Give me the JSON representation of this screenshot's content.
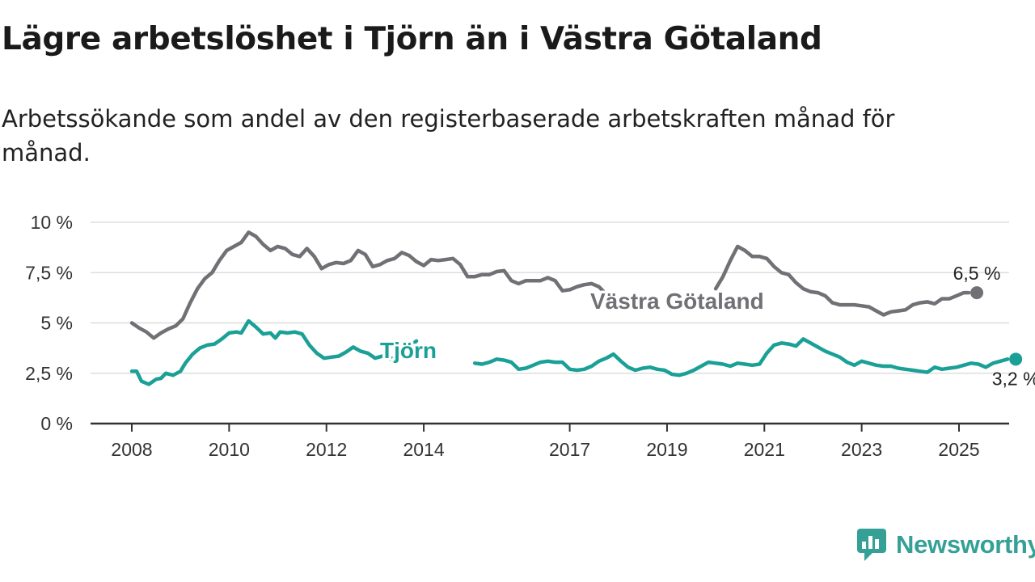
{
  "title": "Lägre arbetslöshet i Tjörn än i Västra Götaland",
  "subtitle": "Arbetssökande som andel av den registerbaserade arbetskraften månad för månad.",
  "brand": {
    "name": "Newsworthy",
    "icon": "newsworthy-logo-icon",
    "color": "#35a096"
  },
  "colors": {
    "grid": "#dddddd",
    "axis": "#333333",
    "text": "#333333"
  },
  "chart_data": {
    "type": "line",
    "title": "Lägre arbetslöshet i Tjörn än i Västra Götaland",
    "xlabel": "",
    "ylabel": "",
    "xlim": [
      2008,
      2026
    ],
    "ylim": [
      0,
      10
    ],
    "grid": true,
    "legend": "inline labels",
    "yticks": [
      {
        "value": 0,
        "label": "0 %"
      },
      {
        "value": 2.5,
        "label": "2,5 %"
      },
      {
        "value": 5,
        "label": "5 %"
      },
      {
        "value": 7.5,
        "label": "7,5 %"
      },
      {
        "value": 10,
        "label": "10 %"
      }
    ],
    "xticks": [
      "2008",
      "2010",
      "2012",
      "2014",
      "2017",
      "2019",
      "2021",
      "2023",
      "2025"
    ],
    "series": [
      {
        "name": "Västra Götaland",
        "color": "#707075",
        "end_label": "6,5 %",
        "segments": [
          [
            [
              2008.0,
              5.0
            ],
            [
              2008.15,
              4.75
            ],
            [
              2008.3,
              4.55
            ],
            [
              2008.45,
              4.25
            ],
            [
              2008.6,
              4.5
            ],
            [
              2008.75,
              4.7
            ],
            [
              2008.9,
              4.85
            ],
            [
              2009.05,
              5.2
            ],
            [
              2009.2,
              6.0
            ],
            [
              2009.35,
              6.7
            ],
            [
              2009.5,
              7.2
            ],
            [
              2009.65,
              7.5
            ],
            [
              2009.8,
              8.1
            ],
            [
              2009.95,
              8.6
            ],
            [
              2010.1,
              8.8
            ],
            [
              2010.25,
              9.0
            ],
            [
              2010.4,
              9.5
            ],
            [
              2010.55,
              9.3
            ],
            [
              2010.7,
              8.9
            ],
            [
              2010.85,
              8.6
            ],
            [
              2011.0,
              8.8
            ],
            [
              2011.15,
              8.7
            ],
            [
              2011.3,
              8.4
            ],
            [
              2011.45,
              8.3
            ],
            [
              2011.6,
              8.7
            ],
            [
              2011.75,
              8.3
            ],
            [
              2011.9,
              7.7
            ],
            [
              2012.05,
              7.9
            ],
            [
              2012.2,
              8.0
            ],
            [
              2012.35,
              7.95
            ],
            [
              2012.5,
              8.1
            ],
            [
              2012.65,
              8.6
            ],
            [
              2012.8,
              8.4
            ],
            [
              2012.95,
              7.8
            ],
            [
              2013.1,
              7.9
            ],
            [
              2013.25,
              8.1
            ],
            [
              2013.4,
              8.2
            ],
            [
              2013.55,
              8.5
            ],
            [
              2013.7,
              8.35
            ],
            [
              2013.85,
              8.05
            ],
            [
              2014.0,
              7.85
            ],
            [
              2014.15,
              8.15
            ],
            [
              2014.3,
              8.1
            ],
            [
              2014.45,
              8.15
            ],
            [
              2014.6,
              8.2
            ],
            [
              2014.75,
              7.9
            ],
            [
              2014.9,
              7.3
            ],
            [
              2015.05,
              7.3
            ],
            [
              2015.2,
              7.4
            ],
            [
              2015.35,
              7.4
            ],
            [
              2015.5,
              7.55
            ],
            [
              2015.65,
              7.6
            ],
            [
              2015.8,
              7.1
            ],
            [
              2015.95,
              6.95
            ],
            [
              2016.1,
              7.1
            ],
            [
              2016.25,
              7.1
            ],
            [
              2016.4,
              7.1
            ],
            [
              2016.55,
              7.25
            ],
            [
              2016.7,
              7.1
            ],
            [
              2016.85,
              6.6
            ],
            [
              2017.0,
              6.65
            ],
            [
              2017.15,
              6.8
            ],
            [
              2017.3,
              6.9
            ],
            [
              2017.45,
              6.95
            ],
            [
              2017.6,
              6.8
            ],
            [
              2017.7,
              6.55
            ]
          ],
          [
            [
              2020.0,
              6.7
            ],
            [
              2020.15,
              7.3
            ],
            [
              2020.3,
              8.1
            ],
            [
              2020.45,
              8.8
            ],
            [
              2020.6,
              8.6
            ],
            [
              2020.75,
              8.3
            ],
            [
              2020.9,
              8.3
            ],
            [
              2021.05,
              8.2
            ],
            [
              2021.2,
              7.8
            ],
            [
              2021.35,
              7.5
            ],
            [
              2021.5,
              7.4
            ],
            [
              2021.65,
              7.0
            ],
            [
              2021.8,
              6.7
            ],
            [
              2021.95,
              6.55
            ],
            [
              2022.1,
              6.5
            ],
            [
              2022.25,
              6.35
            ],
            [
              2022.4,
              6.0
            ],
            [
              2022.55,
              5.9
            ],
            [
              2022.7,
              5.9
            ],
            [
              2022.85,
              5.9
            ],
            [
              2023.0,
              5.85
            ],
            [
              2023.15,
              5.8
            ],
            [
              2023.3,
              5.6
            ],
            [
              2023.45,
              5.4
            ],
            [
              2023.6,
              5.55
            ],
            [
              2023.75,
              5.6
            ],
            [
              2023.9,
              5.65
            ],
            [
              2024.05,
              5.9
            ],
            [
              2024.2,
              6.0
            ],
            [
              2024.35,
              6.05
            ],
            [
              2024.5,
              5.95
            ],
            [
              2024.65,
              6.2
            ],
            [
              2024.8,
              6.2
            ],
            [
              2024.95,
              6.35
            ],
            [
              2025.1,
              6.5
            ],
            [
              2025.2,
              6.5
            ]
          ]
        ]
      },
      {
        "name": "Tjörn",
        "color": "#1aa096",
        "end_label": "3,2 %",
        "segments": [
          [
            [
              2008.0,
              2.6
            ],
            [
              2008.1,
              2.6
            ],
            [
              2008.2,
              2.1
            ],
            [
              2008.35,
              1.95
            ],
            [
              2008.5,
              2.2
            ],
            [
              2008.6,
              2.25
            ],
            [
              2008.7,
              2.5
            ],
            [
              2008.85,
              2.4
            ],
            [
              2009.0,
              2.6
            ],
            [
              2009.1,
              3.0
            ],
            [
              2009.25,
              3.45
            ],
            [
              2009.4,
              3.75
            ],
            [
              2009.55,
              3.9
            ],
            [
              2009.7,
              3.95
            ],
            [
              2009.85,
              4.2
            ],
            [
              2010.0,
              4.5
            ],
            [
              2010.15,
              4.55
            ],
            [
              2010.25,
              4.5
            ],
            [
              2010.4,
              5.1
            ],
            [
              2010.55,
              4.8
            ],
            [
              2010.7,
              4.45
            ],
            [
              2010.85,
              4.5
            ],
            [
              2010.95,
              4.25
            ],
            [
              2011.05,
              4.55
            ],
            [
              2011.2,
              4.5
            ],
            [
              2011.35,
              4.55
            ],
            [
              2011.5,
              4.45
            ],
            [
              2011.65,
              3.9
            ],
            [
              2011.8,
              3.5
            ],
            [
              2011.95,
              3.25
            ],
            [
              2012.1,
              3.3
            ],
            [
              2012.25,
              3.35
            ],
            [
              2012.4,
              3.55
            ],
            [
              2012.55,
              3.8
            ],
            [
              2012.7,
              3.6
            ],
            [
              2012.85,
              3.5
            ],
            [
              2013.0,
              3.25
            ],
            [
              2013.15,
              3.35
            ],
            [
              2013.3,
              3.2
            ],
            [
              2013.45,
              3.3
            ],
            [
              2013.6,
              3.6
            ],
            [
              2013.75,
              3.9
            ],
            [
              2013.85,
              4.1
            ]
          ],
          [
            [
              2015.05,
              3.0
            ],
            [
              2015.2,
              2.95
            ],
            [
              2015.35,
              3.05
            ],
            [
              2015.5,
              3.2
            ],
            [
              2015.65,
              3.15
            ],
            [
              2015.8,
              3.05
            ],
            [
              2015.95,
              2.7
            ],
            [
              2016.1,
              2.75
            ],
            [
              2016.25,
              2.9
            ],
            [
              2016.4,
              3.05
            ],
            [
              2016.55,
              3.1
            ],
            [
              2016.7,
              3.05
            ],
            [
              2016.85,
              3.05
            ],
            [
              2017.0,
              2.7
            ],
            [
              2017.15,
              2.65
            ],
            [
              2017.3,
              2.7
            ],
            [
              2017.45,
              2.85
            ],
            [
              2017.6,
              3.1
            ],
            [
              2017.75,
              3.25
            ],
            [
              2017.9,
              3.45
            ],
            [
              2018.05,
              3.1
            ],
            [
              2018.2,
              2.8
            ],
            [
              2018.35,
              2.65
            ],
            [
              2018.5,
              2.75
            ],
            [
              2018.65,
              2.8
            ],
            [
              2018.8,
              2.7
            ],
            [
              2018.95,
              2.65
            ],
            [
              2019.1,
              2.45
            ],
            [
              2019.25,
              2.4
            ],
            [
              2019.4,
              2.5
            ],
            [
              2019.55,
              2.65
            ],
            [
              2019.7,
              2.85
            ],
            [
              2019.85,
              3.05
            ],
            [
              2020.0,
              3.0
            ],
            [
              2020.15,
              2.95
            ],
            [
              2020.3,
              2.85
            ],
            [
              2020.45,
              3.0
            ],
            [
              2020.6,
              2.95
            ],
            [
              2020.75,
              2.9
            ],
            [
              2020.9,
              2.95
            ],
            [
              2021.05,
              3.5
            ],
            [
              2021.2,
              3.9
            ],
            [
              2021.35,
              4.0
            ],
            [
              2021.5,
              3.95
            ],
            [
              2021.65,
              3.85
            ],
            [
              2021.8,
              4.2
            ],
            [
              2021.95,
              4.0
            ],
            [
              2022.1,
              3.8
            ],
            [
              2022.25,
              3.6
            ],
            [
              2022.4,
              3.45
            ],
            [
              2022.55,
              3.3
            ],
            [
              2022.7,
              3.05
            ],
            [
              2022.85,
              2.9
            ],
            [
              2023.0,
              3.1
            ],
            [
              2023.15,
              3.0
            ],
            [
              2023.3,
              2.9
            ],
            [
              2023.45,
              2.85
            ],
            [
              2023.6,
              2.85
            ],
            [
              2023.75,
              2.75
            ],
            [
              2023.9,
              2.7
            ],
            [
              2024.05,
              2.65
            ],
            [
              2024.2,
              2.6
            ],
            [
              2024.35,
              2.55
            ],
            [
              2024.5,
              2.8
            ],
            [
              2024.65,
              2.7
            ],
            [
              2024.8,
              2.75
            ],
            [
              2024.95,
              2.8
            ],
            [
              2025.1,
              2.9
            ],
            [
              2025.25,
              3.0
            ],
            [
              2025.4,
              2.95
            ],
            [
              2025.55,
              2.8
            ],
            [
              2025.7,
              3.0
            ],
            [
              2025.85,
              3.1
            ],
            [
              2026.0,
              3.2
            ]
          ]
        ]
      }
    ]
  }
}
